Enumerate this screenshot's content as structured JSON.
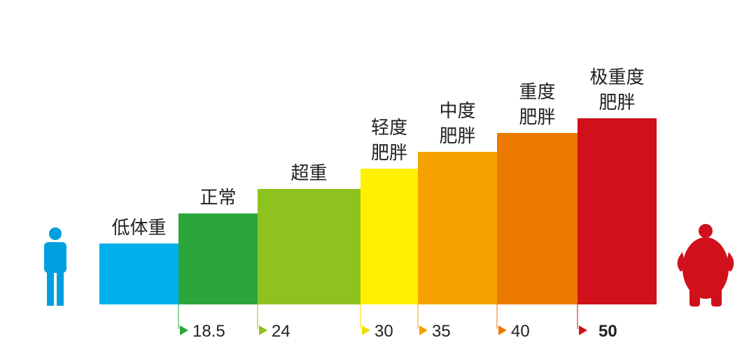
{
  "levels": [
    {
      "label_lines": [
        "低体重"
      ]
    },
    {
      "label_lines": [
        "正常"
      ]
    },
    {
      "label_lines": [
        "超重"
      ]
    },
    {
      "label_lines": [
        "轻度",
        "肥胖"
      ]
    },
    {
      "label_lines": [
        "中度",
        "肥胖"
      ]
    },
    {
      "label_lines": [
        "重度",
        "肥胖"
      ]
    },
    {
      "label_lines": [
        "极重度",
        "肥胖"
      ]
    }
  ],
  "thresholds": [
    "18.5",
    "24",
    "30",
    "35",
    "40",
    "50"
  ]
}
